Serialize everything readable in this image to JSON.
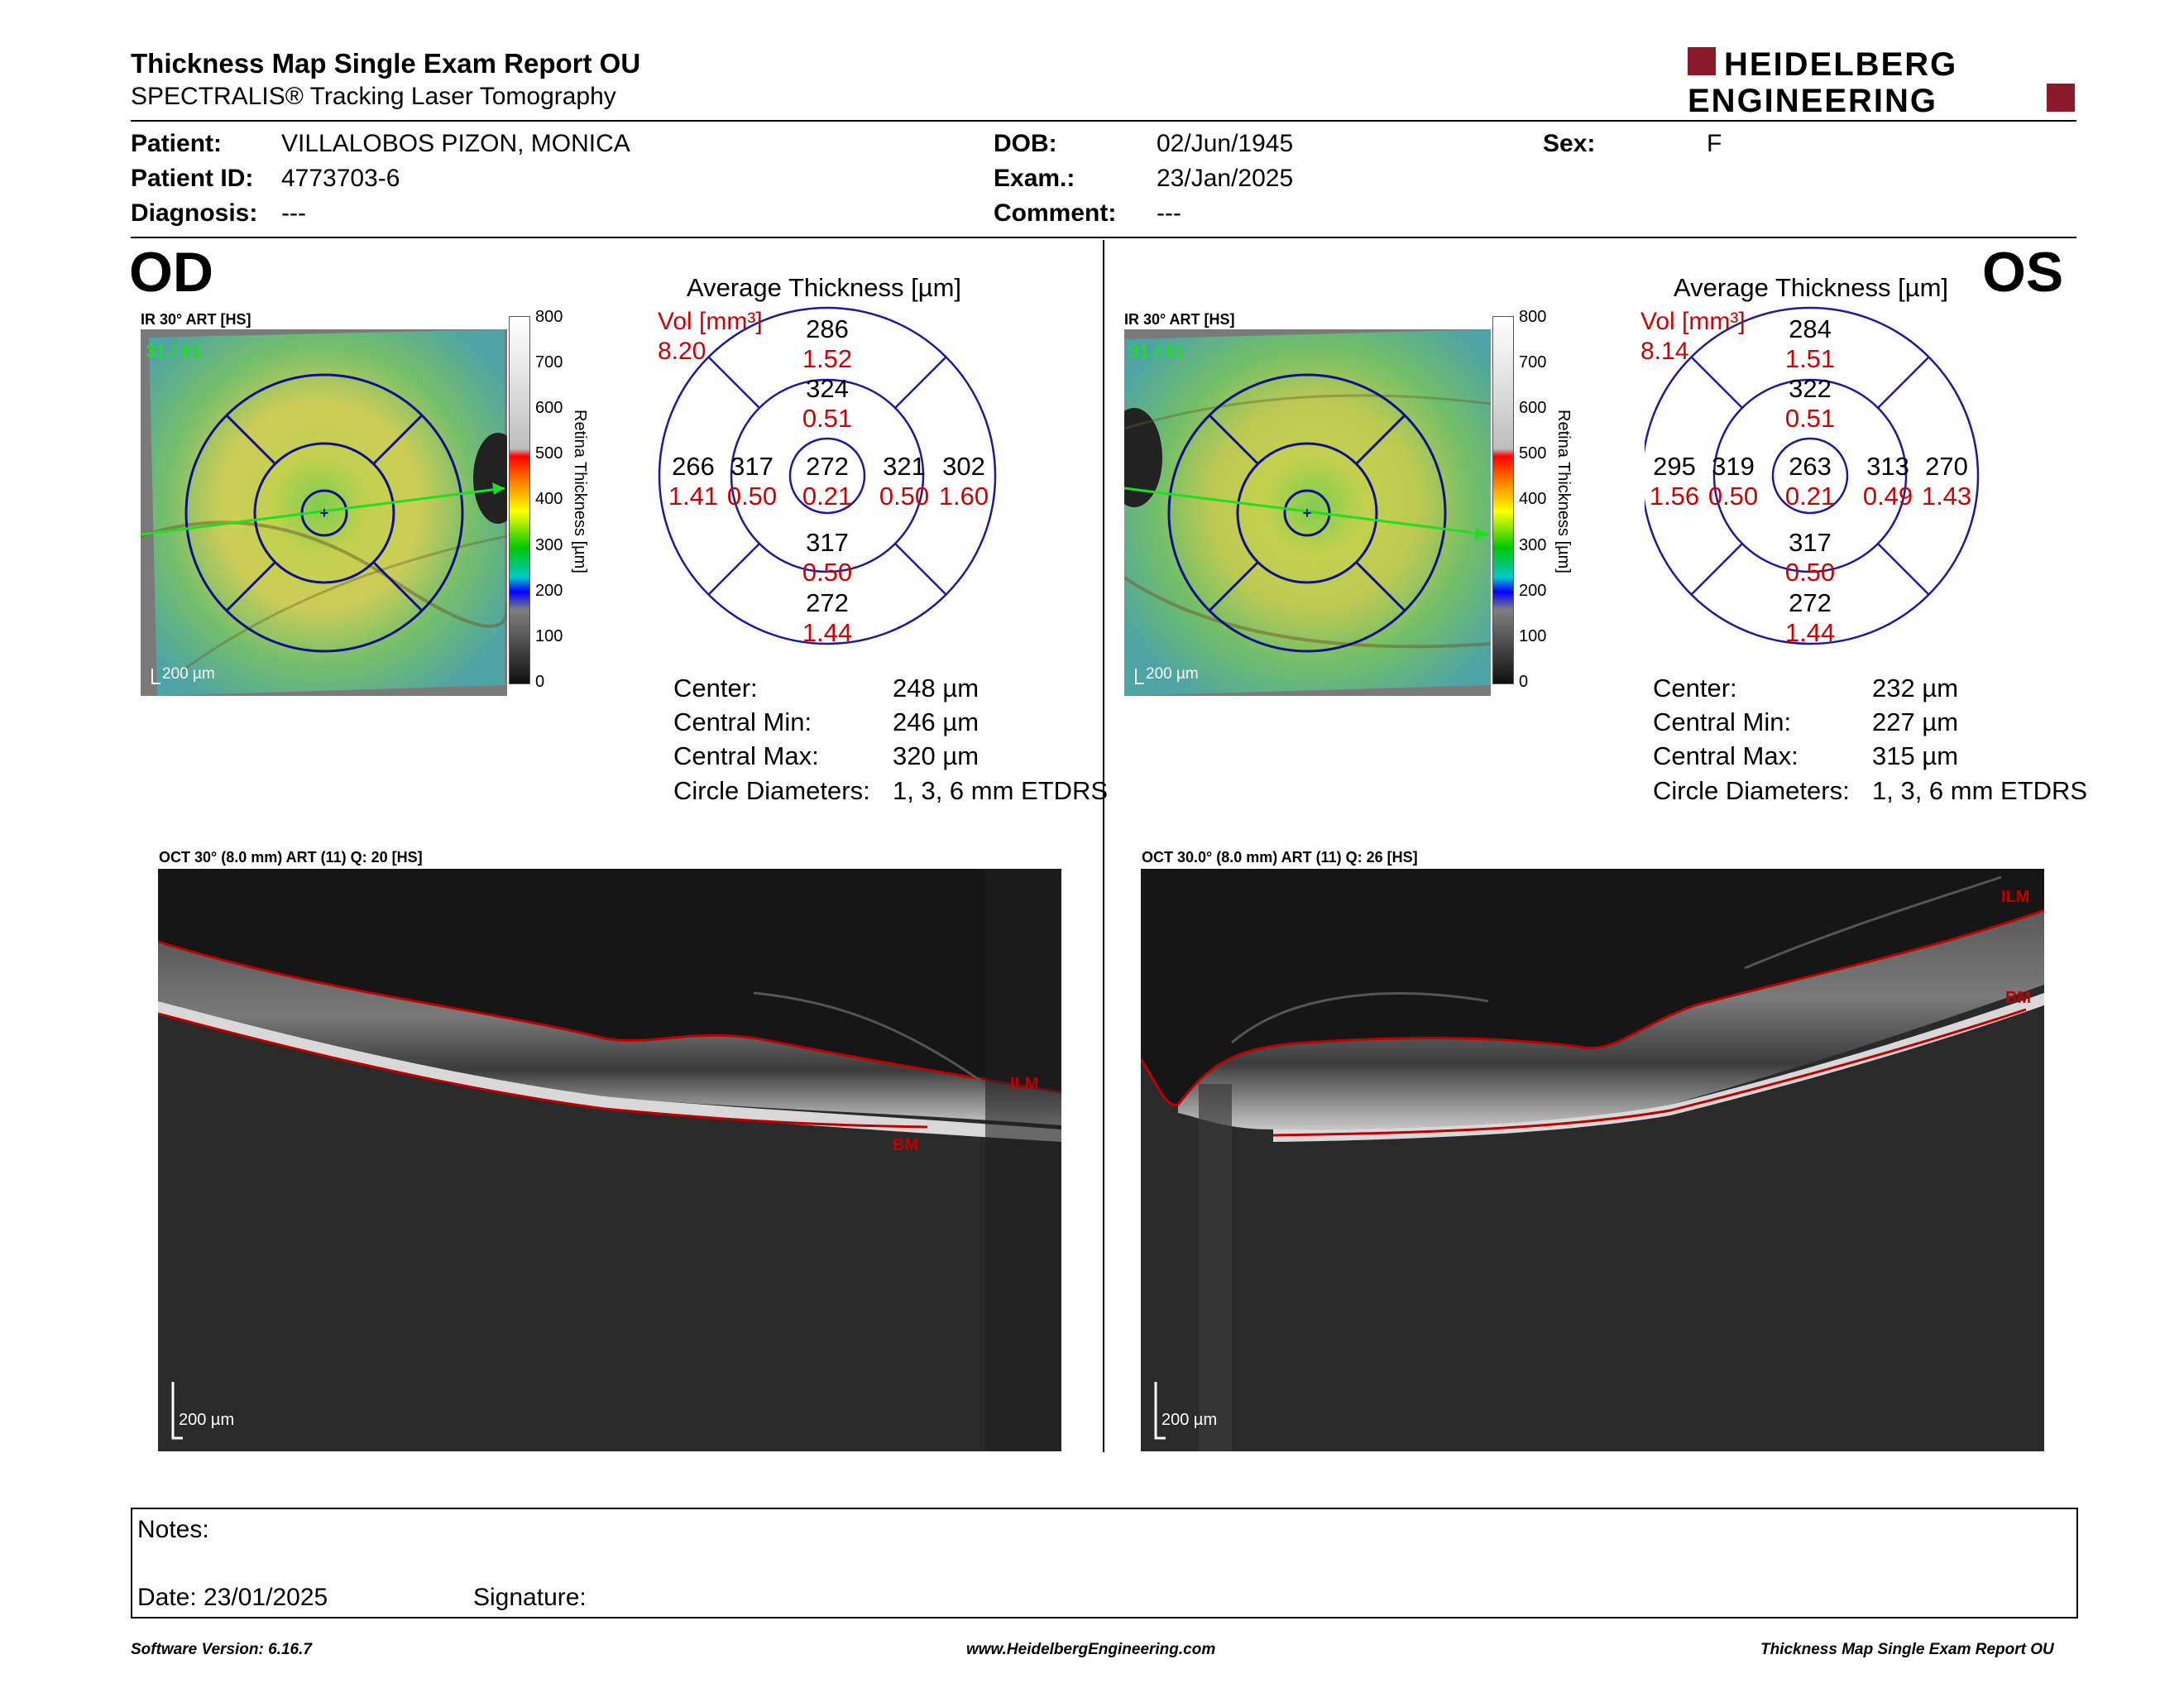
{
  "report": {
    "title": "Thickness Map Single Exam Report OU",
    "subtitle": "SPECTRALIS® Tracking Laser Tomography"
  },
  "logo": {
    "line1": "HEIDELBERG",
    "line2": "ENGINEERING",
    "brand_color": "#8b1a2b"
  },
  "patient": {
    "patient_label": "Patient:",
    "patient_value": "VILLALOBOS PIZON, MONICA",
    "id_label": "Patient ID:",
    "id_value": "4773703-6",
    "diagnosis_label": "Diagnosis:",
    "diagnosis_value": "---",
    "dob_label": "DOB:",
    "dob_value": "02/Jun/1945",
    "exam_label": "Exam.:",
    "exam_value": "23/Jan/2025",
    "comment_label": "Comment:",
    "comment_value": "---",
    "sex_label": "Sex:",
    "sex_value": "F"
  },
  "od": {
    "eye": "OD",
    "ir_caption": "IR 30° ART [HS]",
    "frame": "31 / 61",
    "scale_text": "200 µm",
    "scale_ticks": [
      "800",
      "700",
      "600",
      "500",
      "400",
      "300",
      "200",
      "100",
      "0"
    ],
    "axis_label": "Retina  Thickness [µm]",
    "avg_title": "Average Thickness [µm]",
    "vol_label": "Vol [mm³]",
    "vol_value": "8.20",
    "grid": {
      "center_t": "272",
      "center_v": "0.21",
      "inner_sup_t": "324",
      "inner_sup_v": "0.51",
      "inner_inf_t": "317",
      "inner_inf_v": "0.50",
      "inner_left_t": "317",
      "inner_left_v": "0.50",
      "inner_right_t": "321",
      "inner_right_v": "0.50",
      "outer_sup_t": "286",
      "outer_sup_v": "1.52",
      "outer_inf_t": "272",
      "outer_inf_v": "1.44",
      "outer_left_t": "266",
      "outer_left_v": "1.41",
      "outer_right_t": "302",
      "outer_right_v": "1.60"
    },
    "stats": {
      "center_label": "Center:",
      "center_value": "248 µm",
      "min_label": "Central Min:",
      "min_value": "246 µm",
      "max_label": "Central Max:",
      "max_value": "320 µm",
      "diam_label": "Circle Diameters:",
      "diam_value": "1, 3, 6 mm ETDRS"
    },
    "oct_caption": "OCT 30° (8.0 mm) ART (11) Q: 20 [HS]",
    "oct_ilm": "ILM",
    "oct_bm": "BM",
    "oct_scale": "200 µm"
  },
  "os": {
    "eye": "OS",
    "ir_caption": "IR 30° ART [HS]",
    "frame": "31 / 61",
    "scale_text": "200 µm",
    "scale_ticks": [
      "800",
      "700",
      "600",
      "500",
      "400",
      "300",
      "200",
      "100",
      "0"
    ],
    "axis_label": "Retina  Thickness [µm]",
    "avg_title": "Average Thickness [µm]",
    "vol_label": "Vol [mm³]",
    "vol_value": "8.14",
    "grid": {
      "center_t": "263",
      "center_v": "0.21",
      "inner_sup_t": "322",
      "inner_sup_v": "0.51",
      "inner_inf_t": "317",
      "inner_inf_v": "0.50",
      "inner_left_t": "319",
      "inner_left_v": "0.50",
      "inner_right_t": "313",
      "inner_right_v": "0.49",
      "outer_sup_t": "284",
      "outer_sup_v": "1.51",
      "outer_inf_t": "272",
      "outer_inf_v": "1.44",
      "outer_left_t": "295",
      "outer_left_v": "1.56",
      "outer_right_t": "270",
      "outer_right_v": "1.43"
    },
    "stats": {
      "center_label": "Center:",
      "center_value": "232 µm",
      "min_label": "Central Min:",
      "min_value": "227 µm",
      "max_label": "Central Max:",
      "max_value": "315 µm",
      "diam_label": "Circle Diameters:",
      "diam_value": "1, 3, 6 mm ETDRS"
    },
    "oct_caption": "OCT 30.0° (8.0 mm) ART (11) Q: 26 [HS]",
    "oct_ilm": "ILM",
    "oct_bm": "BM",
    "oct_scale": "200 µm"
  },
  "notes": {
    "notes_label": "Notes:",
    "date_label": "Date: 23/01/2025",
    "signature_label": "Signature:"
  },
  "footer": {
    "software": "Software Version: 6.16.7",
    "website": "www.HeidelbergEngineering.com",
    "report_name": "Thickness Map Single Exam Report OU"
  },
  "colors": {
    "grid_blue": "#1a1aa0",
    "value_red": "#d00000",
    "ilm_red": "#c00000"
  }
}
